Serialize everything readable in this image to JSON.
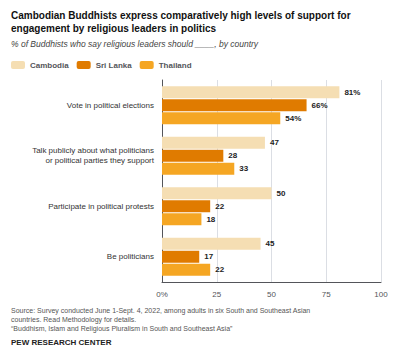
{
  "chart_data": {
    "type": "bar",
    "orientation": "horizontal",
    "title": "Cambodian Buddhists express comparatively high levels of support for engagement by religious leaders in politics",
    "subtitle": "% of Buddhists who say religious leaders should ____, by country",
    "categories": [
      "Vote in political elections",
      "Talk publicly about what politicians\nor political parties they support",
      "Participate in political protests",
      "Be politicians"
    ],
    "series": [
      {
        "name": "Cambodia",
        "color": "#f5deb3",
        "values": [
          81,
          47,
          50,
          45
        ],
        "value_labels": [
          "81%",
          "47",
          "50",
          "45"
        ]
      },
      {
        "name": "Sri Lanka",
        "color": "#e07b00",
        "values": [
          66,
          28,
          22,
          17
        ],
        "value_labels": [
          "66%",
          "28",
          "22",
          "17"
        ]
      },
      {
        "name": "Thailand",
        "color": "#f5a623",
        "values": [
          54,
          33,
          18,
          22
        ],
        "value_labels": [
          "54%",
          "33",
          "18",
          "22"
        ]
      }
    ],
    "xlim": [
      0,
      100
    ],
    "xticks": [
      {
        "value": 0,
        "label": "0%"
      },
      25,
      50,
      75,
      100
    ],
    "grid": true,
    "legend": "upper left",
    "data_labels": true,
    "annotations": [
      "Source: Survey conducted June 1-Sept. 4, 2022, among adults in six South and Southeast Asian countries. Read Methodology for details.",
      "“Buddhism, Islam and Religious Pluralism in South and Southeast Asia”",
      "PEW RESEARCH CENTER"
    ]
  }
}
